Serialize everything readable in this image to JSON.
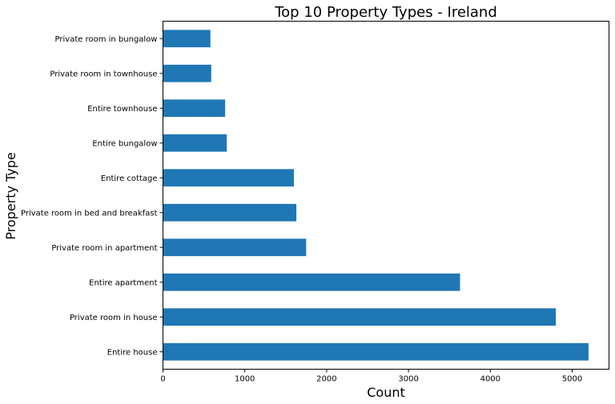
{
  "chart_data": {
    "type": "bar",
    "orientation": "horizontal",
    "title": "Top 10 Property Types - Ireland",
    "xlabel": "Count",
    "ylabel": "Property Type",
    "categories": [
      "Entire house",
      "Private room in house",
      "Entire apartment",
      "Private room in apartment",
      "Private room in bed and breakfast",
      "Entire cottage",
      "Entire bungalow",
      "Entire townhouse",
      "Private room in townhouse",
      "Private room in bungalow"
    ],
    "values": [
      5200,
      4800,
      3630,
      1750,
      1630,
      1600,
      780,
      760,
      590,
      580
    ],
    "xlim": [
      0,
      5450
    ],
    "xticks": [
      0,
      1000,
      2000,
      3000,
      4000,
      5000
    ],
    "bar_color": "#1f77b4",
    "grid": false,
    "legend": false
  }
}
